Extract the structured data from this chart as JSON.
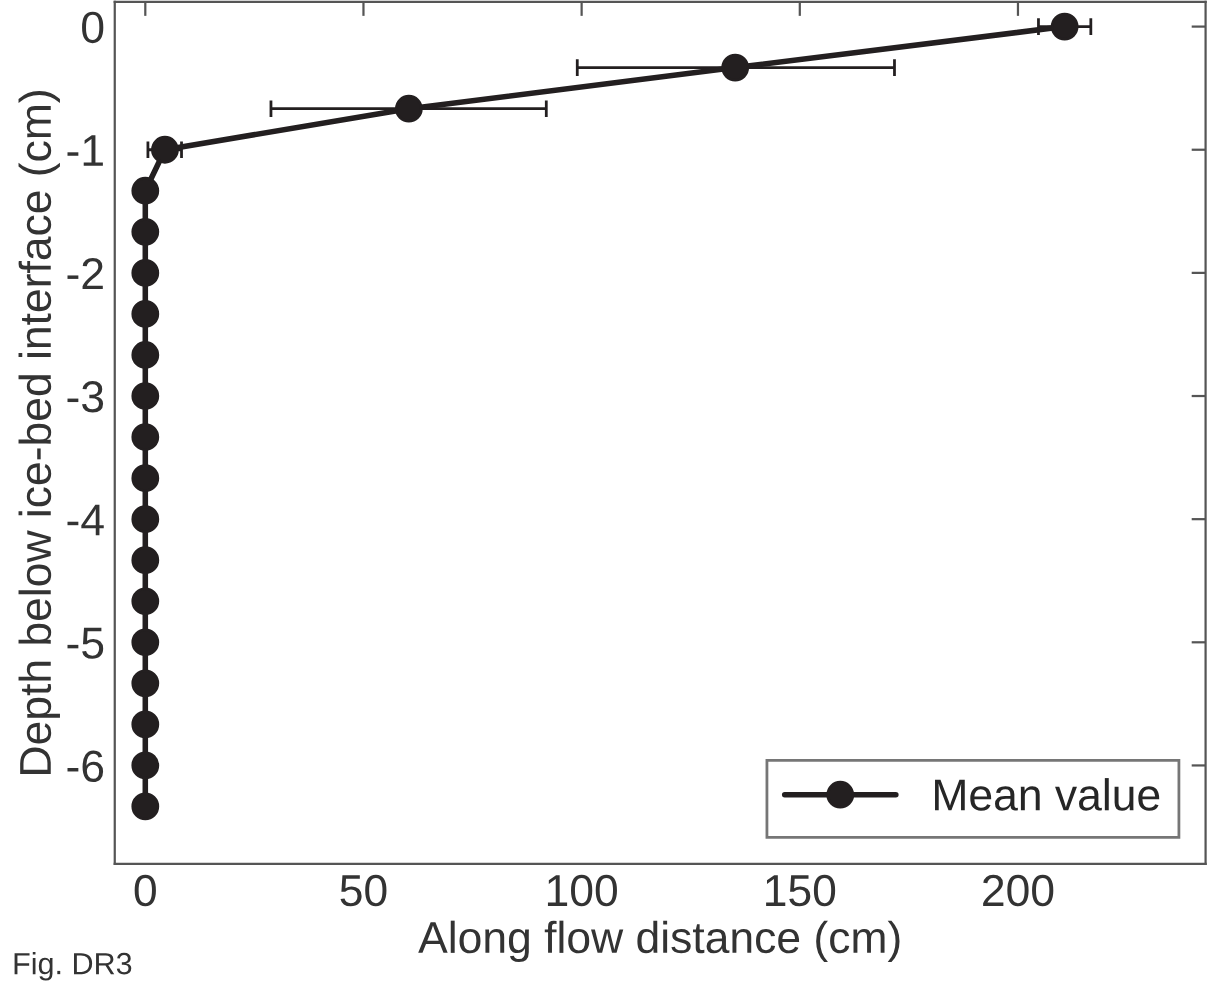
{
  "chart_data": {
    "type": "line",
    "xlabel": "Along flow distance (cm)",
    "ylabel": "Depth below ice-bed interface (cm)",
    "annotations": [
      "Fig. DR3"
    ],
    "x": [
      210.7,
      135.2,
      60.4,
      4.5,
      0,
      0,
      0,
      0,
      0,
      0,
      0,
      0,
      0,
      0,
      0,
      0,
      0,
      0,
      0,
      0
    ],
    "series": [
      {
        "name": "Mean value",
        "color": "#231f20",
        "values": [
          0,
          -0.333,
          -0.667,
          -1,
          -1.333,
          -1.667,
          -2,
          -2.333,
          -2.667,
          -3,
          -3.333,
          -3.667,
          -4,
          -4.333,
          -4.667,
          -5,
          -5.333,
          -5.667,
          -6,
          -6.333
        ],
        "xerrors": [
          [
            204.7,
            216.7
          ],
          [
            99,
            171.7
          ],
          [
            28.8,
            91.9
          ],
          [
            0.6,
            8.3
          ],
          null,
          null,
          null,
          null,
          null,
          null,
          null,
          null,
          null,
          null,
          null,
          null,
          null,
          null,
          null,
          null
        ]
      }
    ],
    "xlim": [
      -7,
      243
    ],
    "ylim": [
      -6.8,
      0.2
    ],
    "xticks": [
      0,
      50,
      100,
      150,
      200
    ],
    "yticks": [
      0,
      -1,
      -2,
      -3,
      -4,
      -5,
      -6
    ],
    "marker": "circle",
    "line_style": "solid",
    "legend": "bottom right",
    "grid": false
  }
}
